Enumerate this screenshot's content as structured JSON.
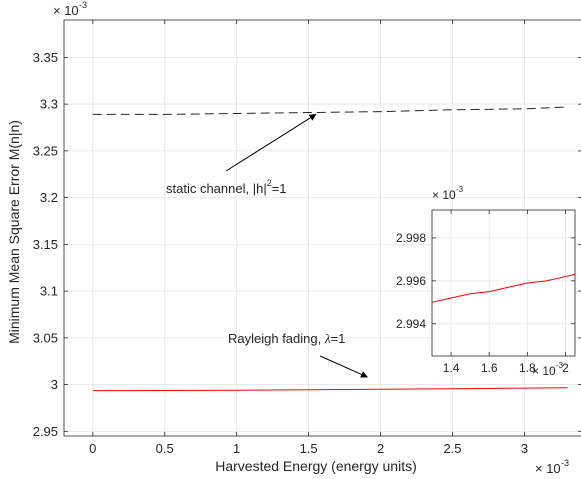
{
  "chart_data": [
    {
      "type": "line",
      "xlabel": "Harvested Energy (energy units)",
      "ylabel": "Minimum Mean Square Error M(n|n)",
      "x_exponent_label": "× 10",
      "x_exponent_power": "-3",
      "y_exponent_label": "× 10",
      "y_exponent_power": "-3",
      "xlim": [
        -0.0002,
        0.0034
      ],
      "ylim": [
        0.002945,
        0.00339
      ],
      "xticks": [
        0,
        0.0005,
        0.001,
        0.0015,
        0.002,
        0.0025,
        0.003
      ],
      "xtick_labels": [
        "0",
        "0.5",
        "1",
        "1.5",
        "2",
        "2.5",
        "3"
      ],
      "yticks": [
        0.00295,
        0.003,
        0.00305,
        0.0031,
        0.00315,
        0.0032,
        0.00325,
        0.0033,
        0.00335
      ],
      "ytick_labels": [
        "2.95",
        "3",
        "3.05",
        "3.1",
        "3.15",
        "3.2",
        "3.25",
        "3.3",
        "3.35"
      ],
      "grid": true,
      "series": [
        {
          "style": "dashed",
          "color": "#262626",
          "x": [
            0,
            0.0005,
            0.001,
            0.0015,
            0.002,
            0.0025,
            0.003,
            0.0033
          ],
          "y": [
            0.003289,
            0.003289,
            0.00329,
            0.003291,
            0.003292,
            0.003294,
            0.003295,
            0.003297
          ]
        },
        {
          "style": "solid",
          "color": "#ff0000",
          "x": [
            0,
            0.0005,
            0.001,
            0.0015,
            0.002,
            0.0025,
            0.003,
            0.0033
          ],
          "y": [
            0.0029935,
            0.0029937,
            0.002994,
            0.0029945,
            0.002995,
            0.0029956,
            0.0029962,
            0.0029966
          ]
        }
      ],
      "annotations": [
        {
          "text_main": "static channel, |h|",
          "text_sup": "2",
          "text_tail": "=1",
          "target_x": 0.00155,
          "target_y": 0.003289
        },
        {
          "text_main": "Rayleigh fading, ",
          "text_symbol": "λ",
          "text_tail": "=1",
          "target_x": 0.00188,
          "target_y": 0.0029953
        }
      ]
    },
    {
      "type": "line",
      "inset": true,
      "x_exponent_label": "× 10",
      "x_exponent_power": "-3",
      "y_exponent_label": "× 10",
      "y_exponent_power": "-3",
      "xlim": [
        0.0013,
        0.00205
      ],
      "ylim": [
        0.0029925,
        0.0029993
      ],
      "xticks": [
        0.0014,
        0.0016,
        0.0018,
        0.002
      ],
      "xtick_labels": [
        "1.4",
        "1.6",
        "1.8",
        "2"
      ],
      "yticks": [
        0.002994,
        0.002996,
        0.002998
      ],
      "ytick_labels": [
        "2.994",
        "2.996",
        "2.998"
      ],
      "grid": true,
      "series": [
        {
          "style": "solid",
          "color": "#ff0000",
          "x": [
            0.0013,
            0.0014,
            0.0015,
            0.0016,
            0.0017,
            0.0018,
            0.0019,
            0.002,
            0.00205
          ],
          "y": [
            0.002995,
            0.0029952,
            0.0029954,
            0.0029955,
            0.0029957,
            0.0029959,
            0.002996,
            0.0029962,
            0.0029963
          ]
        }
      ]
    }
  ]
}
